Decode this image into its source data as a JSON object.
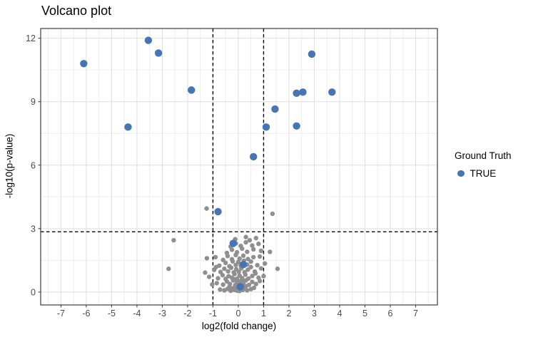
{
  "title": "Volcano plot",
  "legend": {
    "title": "Ground Truth",
    "items": [
      {
        "label": "TRUE",
        "color": "#4575b4"
      }
    ]
  },
  "colors": {
    "true_points": "#4575b4",
    "background_points": "#8f8f8f",
    "panel_border": "#3c3c3c",
    "grid_major": "#dedede",
    "grid_minor": "#ededed",
    "tick_label": "#4a4a4a",
    "threshold_line": "#000000"
  },
  "chart_data": {
    "type": "scatter",
    "title": "Volcano plot",
    "xlabel": "log2(fold change)",
    "ylabel": "-log10(p-value)",
    "x_ticks": [
      -7,
      -6,
      -5,
      -4,
      -3,
      -2,
      -1,
      0,
      1,
      2,
      3,
      4,
      5,
      6,
      7
    ],
    "y_ticks": [
      0,
      3,
      6,
      9,
      12
    ],
    "xlim": [
      -7.8,
      7.86
    ],
    "ylim": [
      -0.61,
      12.46
    ],
    "grid": {
      "x_minor_step": 0.5,
      "y_minor": [
        1.5,
        4.5,
        7.5,
        10.5
      ],
      "major_on": true
    },
    "thresholds": {
      "vlines": [
        -1,
        1
      ],
      "hline": 2.85,
      "style": "dashed"
    },
    "legend_position": "right",
    "series": [
      {
        "name": "TRUE",
        "color": "#4575b4",
        "radius": 5.2,
        "points": [
          [
            -6.1,
            10.8
          ],
          [
            -4.35,
            7.8
          ],
          [
            -3.55,
            11.9
          ],
          [
            -3.15,
            11.3
          ],
          [
            -1.85,
            9.55
          ],
          [
            -0.8,
            3.8
          ],
          [
            -0.2,
            2.3
          ],
          [
            0.2,
            1.3
          ],
          [
            0.08,
            0.25
          ],
          [
            0.6,
            6.4
          ],
          [
            1.1,
            7.8
          ],
          [
            1.45,
            8.65
          ],
          [
            2.3,
            9.4
          ],
          [
            2.55,
            9.45
          ],
          [
            3.7,
            9.45
          ],
          [
            2.3,
            7.85
          ],
          [
            2.9,
            11.25
          ]
        ]
      },
      {
        "name": "background",
        "color": "#8f8f8f",
        "radius": 3.2,
        "points": [
          [
            -2.75,
            1.1
          ],
          [
            -2.55,
            2.45
          ],
          [
            -1.25,
            3.95
          ],
          [
            1.35,
            3.7
          ],
          [
            1.55,
            1.1
          ],
          [
            1.25,
            1.9
          ],
          [
            -0.72,
            0.12
          ],
          [
            -0.55,
            0.08
          ],
          [
            -0.42,
            0.15
          ],
          [
            -0.3,
            0.06
          ],
          [
            -0.22,
            0.18
          ],
          [
            -0.15,
            0.1
          ],
          [
            -0.1,
            0.22
          ],
          [
            -0.05,
            0.07
          ],
          [
            0,
            0.15
          ],
          [
            0.05,
            0.05
          ],
          [
            0.1,
            0.2
          ],
          [
            0.18,
            0.1
          ],
          [
            0.25,
            0.16
          ],
          [
            0.35,
            0.08
          ],
          [
            0.5,
            0.14
          ],
          [
            0.62,
            0.2
          ],
          [
            -0.35,
            0.25
          ],
          [
            0.3,
            0.28
          ],
          [
            -1.03,
            0.36
          ],
          [
            -0.85,
            0.42
          ],
          [
            -0.6,
            0.35
          ],
          [
            -0.45,
            0.5
          ],
          [
            -0.33,
            0.38
          ],
          [
            -0.2,
            0.55
          ],
          [
            -0.12,
            0.33
          ],
          [
            -0.05,
            0.48
          ],
          [
            0.02,
            0.36
          ],
          [
            0.1,
            0.52
          ],
          [
            0.2,
            0.4
          ],
          [
            0.3,
            0.55
          ],
          [
            0.42,
            0.34
          ],
          [
            0.55,
            0.48
          ],
          [
            0.7,
            0.38
          ],
          [
            0.85,
            0.52
          ],
          [
            -0.15,
            0.6
          ],
          [
            0.15,
            0.58
          ],
          [
            -1.15,
            0.72
          ],
          [
            -0.8,
            0.65
          ],
          [
            -0.62,
            0.8
          ],
          [
            -0.5,
            0.62
          ],
          [
            -0.38,
            0.75
          ],
          [
            -0.25,
            0.68
          ],
          [
            -0.15,
            0.85
          ],
          [
            -0.05,
            0.63
          ],
          [
            0.05,
            0.78
          ],
          [
            0.15,
            0.66
          ],
          [
            0.28,
            0.82
          ],
          [
            0.4,
            0.64
          ],
          [
            0.55,
            0.76
          ],
          [
            0.68,
            0.88
          ],
          [
            0.8,
            0.68
          ],
          [
            1,
            0.75
          ],
          [
            -1.31,
            0.92
          ],
          [
            -0.95,
            1.05
          ],
          [
            -0.7,
            0.95
          ],
          [
            -0.55,
            1.1
          ],
          [
            -0.4,
            0.98
          ],
          [
            -0.28,
            1.15
          ],
          [
            -0.18,
            0.93
          ],
          [
            -0.08,
            1.08
          ],
          [
            0.02,
            0.96
          ],
          [
            0.12,
            1.12
          ],
          [
            0.25,
            0.94
          ],
          [
            0.38,
            1.06
          ],
          [
            0.5,
            1.18
          ],
          [
            0.65,
            0.97
          ],
          [
            0.9,
            1.12
          ],
          [
            -0.88,
            1.18
          ],
          [
            -0.75,
            1.25
          ],
          [
            -0.5,
            1.38
          ],
          [
            -0.35,
            1.22
          ],
          [
            -0.22,
            1.45
          ],
          [
            -0.1,
            1.28
          ],
          [
            0,
            1.42
          ],
          [
            0.1,
            1.25
          ],
          [
            0.22,
            1.48
          ],
          [
            0.35,
            1.3
          ],
          [
            0.5,
            1.44
          ],
          [
            0.75,
            1.27
          ],
          [
            1.05,
            1.35
          ],
          [
            -1.24,
            1.6
          ],
          [
            -0.9,
            1.65
          ],
          [
            -0.6,
            1.52
          ],
          [
            -0.42,
            1.7
          ],
          [
            -0.25,
            1.55
          ],
          [
            -0.1,
            1.75
          ],
          [
            0.05,
            1.58
          ],
          [
            0.2,
            1.72
          ],
          [
            0.38,
            1.56
          ],
          [
            0.6,
            1.65
          ],
          [
            0.85,
            1.68
          ],
          [
            -0.45,
            1.85
          ],
          [
            -0.25,
            2
          ],
          [
            -0.05,
            1.88
          ],
          [
            0.15,
            2.05
          ],
          [
            0.35,
            1.9
          ],
          [
            0.6,
            2.02
          ],
          [
            0.9,
            1.95
          ],
          [
            -0.3,
            2.15
          ],
          [
            -0.1,
            2.3
          ],
          [
            0.1,
            2.18
          ],
          [
            0.3,
            2.35
          ],
          [
            0.55,
            2.2
          ],
          [
            0.8,
            2.28
          ],
          [
            -0.12,
            2.5
          ],
          [
            0.3,
            2.6
          ],
          [
            0.7,
            2.55
          ],
          [
            0.45,
            2.45
          ]
        ]
      }
    ]
  }
}
